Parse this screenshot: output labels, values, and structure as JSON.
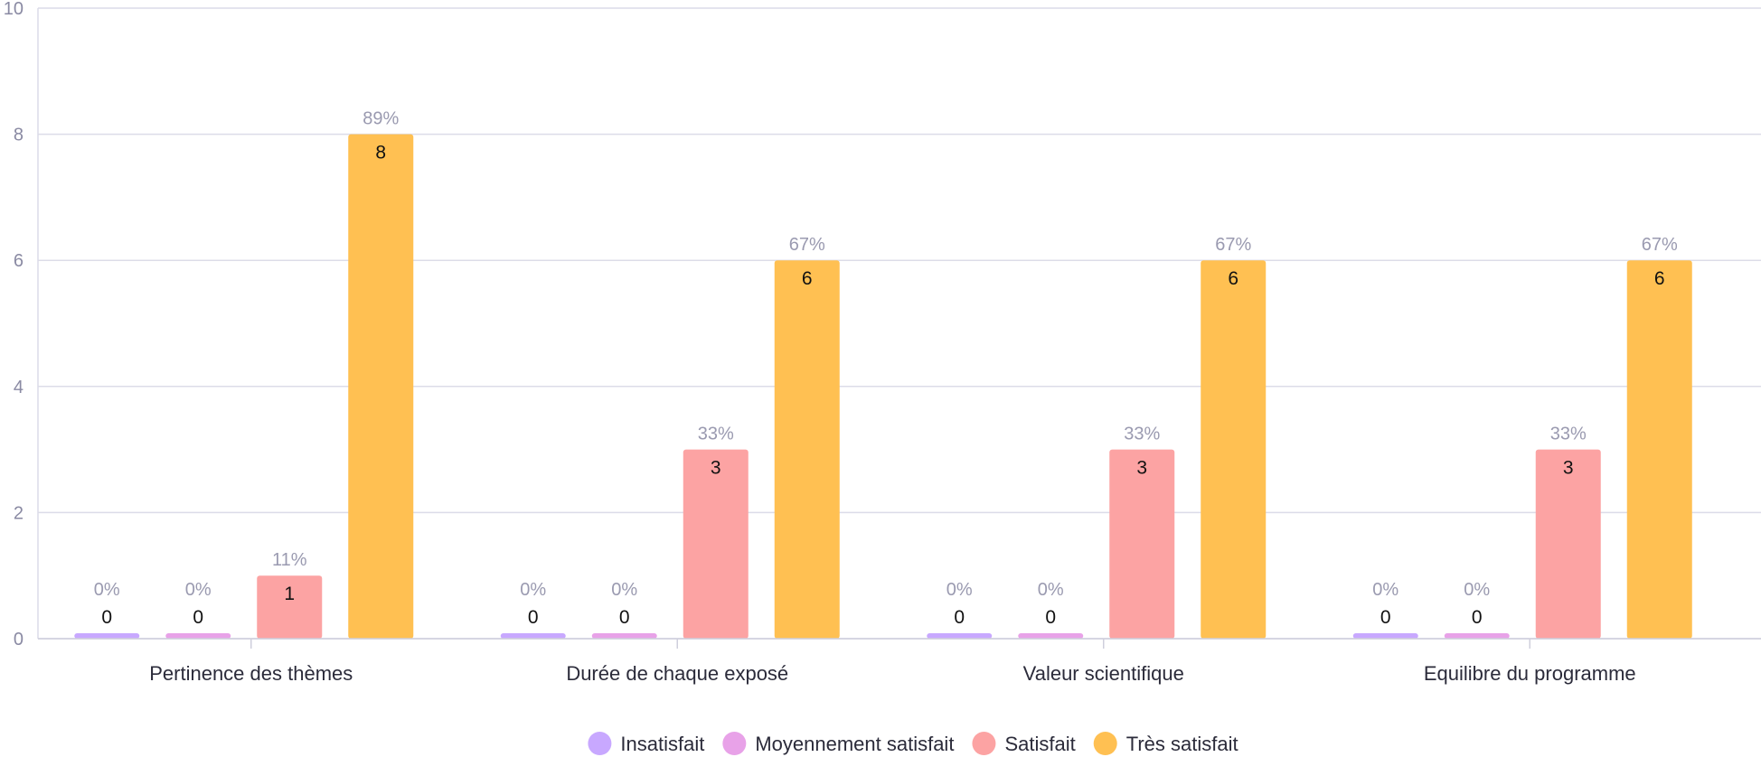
{
  "chart_data": {
    "type": "bar",
    "categories": [
      "Pertinence des thèmes",
      "Durée de chaque exposé",
      "Valeur scientifique",
      "Equilibre du programme"
    ],
    "series": [
      {
        "name": "Insatisfait",
        "color": "#c8a8ff",
        "values": [
          0,
          0,
          0,
          0
        ],
        "labels": [
          "0%",
          "0%",
          "0%",
          "0%"
        ]
      },
      {
        "name": "Moyennement satisfait",
        "color": "#e8a2e8",
        "values": [
          0,
          0,
          0,
          0
        ],
        "labels": [
          "0%",
          "0%",
          "0%",
          "0%"
        ]
      },
      {
        "name": "Satisfait",
        "color": "#fca3a3",
        "values": [
          1,
          3,
          3,
          3
        ],
        "labels": [
          "11%",
          "33%",
          "33%",
          "33%"
        ]
      },
      {
        "name": "Très satisfait",
        "color": "#ffc052",
        "values": [
          8,
          6,
          6,
          6
        ],
        "labels": [
          "89%",
          "67%",
          "67%",
          "67%"
        ]
      }
    ],
    "ylim": [
      0,
      10
    ],
    "yticks": [
      0,
      2,
      4,
      6,
      8,
      10
    ],
    "grid": true,
    "legend": "bottom",
    "title": "",
    "xlabel": "",
    "ylabel": ""
  }
}
